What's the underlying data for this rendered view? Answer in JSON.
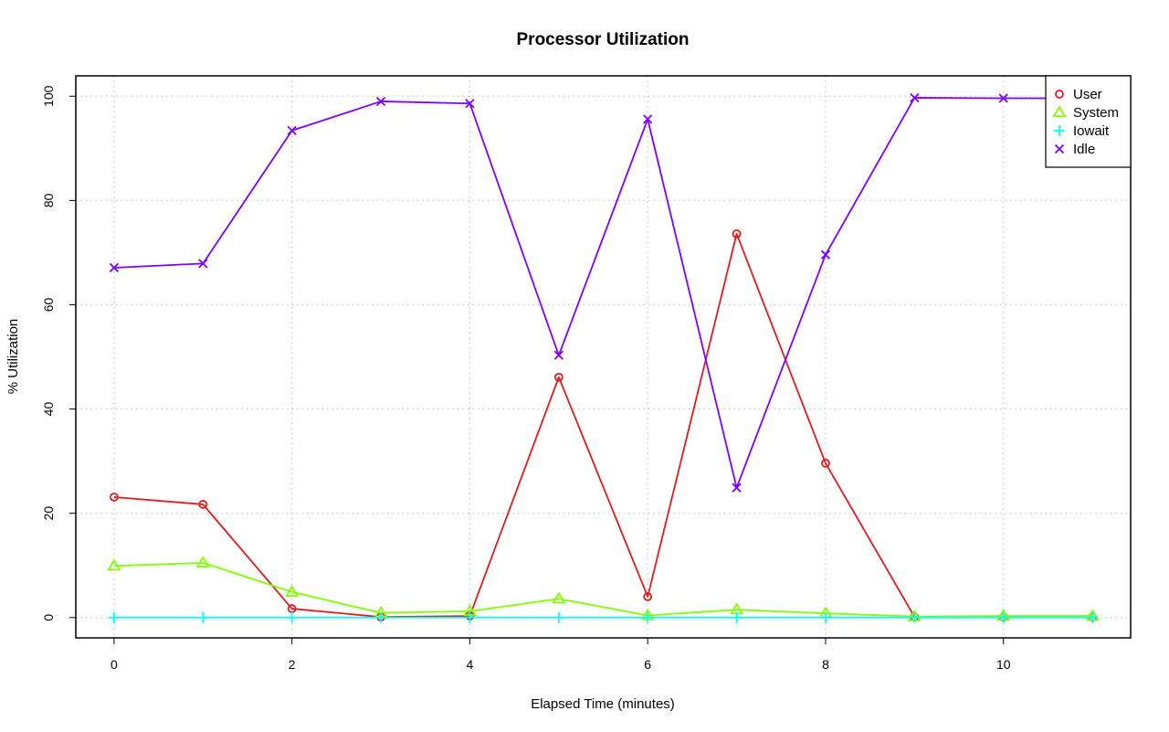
{
  "chart_data": {
    "type": "line",
    "title": "Processor Utilization",
    "xlabel": "Elapsed Time (minutes)",
    "ylabel": "% Utilization",
    "xlim": [
      -0.43,
      11.43
    ],
    "ylim": [
      -3.9,
      103.9
    ],
    "x_ticks": [
      0,
      2,
      4,
      6,
      8,
      10
    ],
    "y_ticks": [
      0,
      20,
      40,
      60,
      80,
      100
    ],
    "grid": true,
    "legend_position": "top-right",
    "x": [
      0,
      1,
      2,
      3,
      4,
      5,
      6,
      7,
      8,
      9,
      10,
      11
    ],
    "series": [
      {
        "name": "User",
        "color": "#e41a1c",
        "marker": "circle",
        "values": [
          23.1,
          21.7,
          1.7,
          0.1,
          0.3,
          46.1,
          4.0,
          73.6,
          29.6,
          0.1,
          0.1,
          0.1
        ]
      },
      {
        "name": "System",
        "color": "#80ff00",
        "marker": "triangle",
        "values": [
          9.9,
          10.5,
          4.9,
          0.9,
          1.2,
          3.6,
          0.4,
          1.5,
          0.8,
          0.2,
          0.3,
          0.3
        ]
      },
      {
        "name": "Iowait",
        "color": "#00ffff",
        "marker": "plus",
        "values": [
          0,
          0,
          0,
          0,
          0,
          0,
          0,
          0,
          0,
          0,
          0,
          0
        ]
      },
      {
        "name": "Idle",
        "color": "#8000ff",
        "marker": "cross",
        "values": [
          67.1,
          67.9,
          93.4,
          99.0,
          98.6,
          50.3,
          95.6,
          24.9,
          69.6,
          99.7,
          99.6,
          99.6
        ]
      }
    ]
  }
}
